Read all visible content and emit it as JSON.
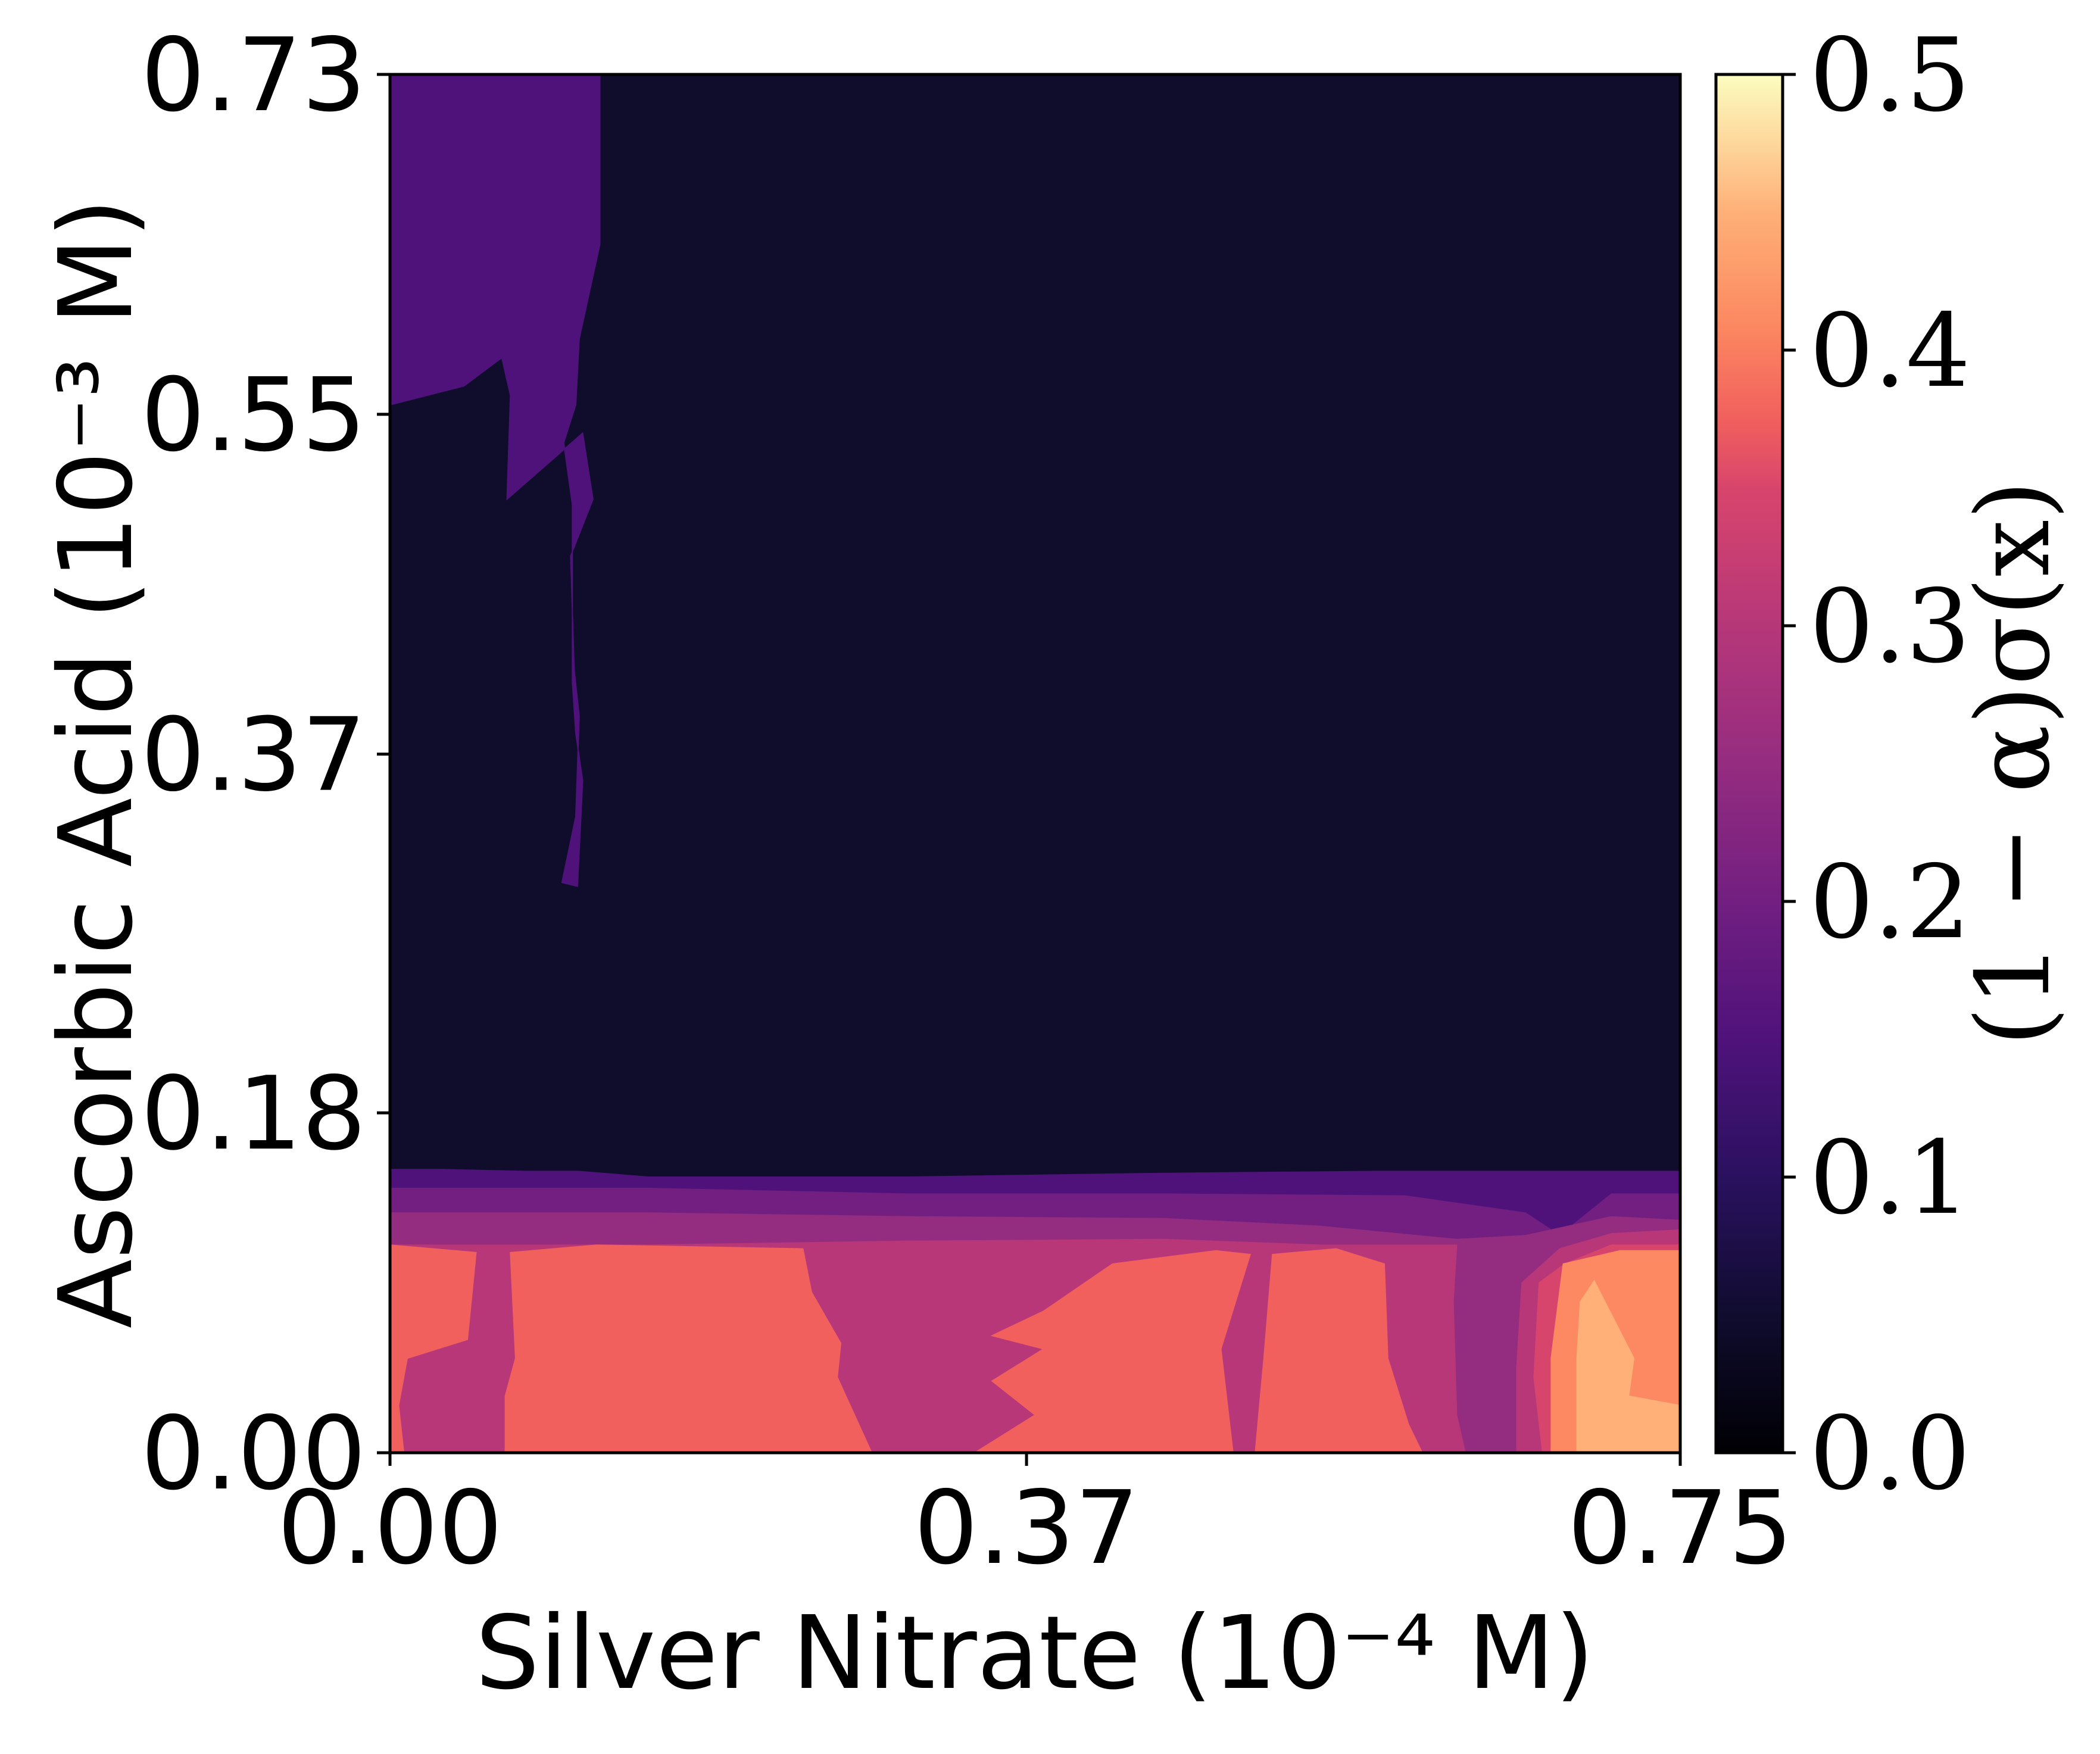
{
  "chart_data": {
    "type": "heatmap",
    "subtype": "filled-contour",
    "title": "",
    "xlabel": "Silver Nitrate (10⁻⁴ M)",
    "ylabel": "Ascorbic Acid (10⁻³ M)",
    "xlim": [
      0.0,
      0.75
    ],
    "ylim": [
      0.0,
      0.73
    ],
    "xticks": [
      "0.00",
      "0.37",
      "0.75"
    ],
    "yticks": [
      "0.00",
      "0.18",
      "0.37",
      "0.55",
      "0.73"
    ],
    "grid": false,
    "colorbar": {
      "label": "(1 − α)σ(x)",
      "range": [
        0.0,
        0.5
      ],
      "ticks": [
        "0.0",
        "0.1",
        "0.2",
        "0.3",
        "0.4",
        "0.5"
      ],
      "colormap": "magma",
      "position": "right"
    },
    "levels": [
      0.0,
      0.05,
      0.1,
      0.15,
      0.2,
      0.25,
      0.3,
      0.35,
      0.4,
      0.45,
      0.5
    ],
    "band_colors": [
      "#0f0d2b",
      "#2d1160",
      "#4f127b",
      "#721f81",
      "#942c80",
      "#b73779",
      "#d8456c",
      "#f1605d",
      "#fc8961",
      "#feb078",
      "#fcfdbf"
    ],
    "regions": [
      {
        "level": 0.0,
        "polygon": [
          [
            0.0,
            0.0
          ],
          [
            0.75,
            0.0
          ],
          [
            0.75,
            0.73
          ],
          [
            0.0,
            0.73
          ]
        ]
      },
      {
        "level": 0.1,
        "polygon": [
          [
            0.0,
            0.0
          ],
          [
            0.75,
            0.0
          ],
          [
            0.75,
            0.149
          ],
          [
            0.57,
            0.149
          ],
          [
            0.45,
            0.148
          ],
          [
            0.3,
            0.146
          ],
          [
            0.15,
            0.146
          ],
          [
            0.11,
            0.149
          ],
          [
            0.08,
            0.149
          ],
          [
            0.03,
            0.15
          ],
          [
            0.0,
            0.15
          ]
        ]
      },
      {
        "level": 0.1,
        "polygon": [
          [
            0.0,
            0.73
          ],
          [
            0.122,
            0.73
          ],
          [
            0.122,
            0.64
          ],
          [
            0.11,
            0.59
          ],
          [
            0.108,
            0.555
          ],
          [
            0.101,
            0.535
          ],
          [
            0.106,
            0.502
          ],
          [
            0.106,
            0.462
          ],
          [
            0.106,
            0.408
          ],
          [
            0.108,
            0.381
          ],
          [
            0.112,
            0.356
          ],
          [
            0.109,
            0.3
          ],
          [
            0.1,
            0.302
          ],
          [
            0.108,
            0.337
          ],
          [
            0.11,
            0.39
          ],
          [
            0.107,
            0.415
          ],
          [
            0.105,
            0.475
          ],
          [
            0.118,
            0.505
          ],
          [
            0.112,
            0.54
          ],
          [
            0.068,
            0.505
          ],
          [
            0.07,
            0.56
          ],
          [
            0.065,
            0.58
          ],
          [
            0.043,
            0.565
          ],
          [
            0.0,
            0.555
          ]
        ]
      },
      {
        "level": 0.15,
        "polygon": [
          [
            0.0,
            0.0
          ],
          [
            0.75,
            0.0
          ],
          [
            0.75,
            0.137
          ],
          [
            0.71,
            0.137
          ],
          [
            0.68,
            0.115
          ],
          [
            0.66,
            0.127
          ],
          [
            0.59,
            0.136
          ],
          [
            0.45,
            0.137
          ],
          [
            0.3,
            0.137
          ],
          [
            0.15,
            0.14
          ],
          [
            0.05,
            0.14
          ],
          [
            0.0,
            0.14
          ]
        ]
      },
      {
        "level": 0.2,
        "polygon": [
          [
            0.0,
            0.0
          ],
          [
            0.75,
            0.0
          ],
          [
            0.75,
            0.123
          ],
          [
            0.71,
            0.125
          ],
          [
            0.66,
            0.115
          ],
          [
            0.62,
            0.113
          ],
          [
            0.54,
            0.12
          ],
          [
            0.45,
            0.124
          ],
          [
            0.3,
            0.125
          ],
          [
            0.15,
            0.127
          ],
          [
            0.05,
            0.127
          ],
          [
            0.0,
            0.127
          ]
        ]
      },
      {
        "level": 0.25,
        "polygon": [
          [
            0.0,
            0.0
          ],
          [
            0.625,
            0.0
          ],
          [
            0.62,
            0.02
          ],
          [
            0.618,
            0.08
          ],
          [
            0.62,
            0.11
          ],
          [
            0.54,
            0.11
          ],
          [
            0.45,
            0.113
          ],
          [
            0.3,
            0.112
          ],
          [
            0.15,
            0.11
          ],
          [
            0.0,
            0.11
          ]
        ]
      },
      {
        "level": 0.25,
        "polygon": [
          [
            0.655,
            0.0
          ],
          [
            0.75,
            0.0
          ],
          [
            0.75,
            0.118
          ],
          [
            0.71,
            0.116
          ],
          [
            0.68,
            0.108
          ],
          [
            0.658,
            0.09
          ],
          [
            0.655,
            0.045
          ]
        ]
      },
      {
        "level": 0.3,
        "polygon": [
          [
            0.67,
            0.0
          ],
          [
            0.75,
            0.0
          ],
          [
            0.75,
            0.11
          ],
          [
            0.71,
            0.11
          ],
          [
            0.683,
            0.1
          ],
          [
            0.668,
            0.09
          ],
          [
            0.665,
            0.04
          ]
        ]
      },
      {
        "level": 0.35,
        "polygon": [
          [
            0.0,
            0.0
          ],
          [
            0.0,
            0.11
          ],
          [
            0.05,
            0.106
          ],
          [
            0.045,
            0.06
          ],
          [
            0.01,
            0.05
          ],
          [
            0.005,
            0.025
          ],
          [
            0.008,
            0.0
          ]
        ]
      },
      {
        "level": 0.35,
        "polygon": [
          [
            0.067,
            0.0
          ],
          [
            0.067,
            0.03
          ],
          [
            0.073,
            0.05
          ],
          [
            0.07,
            0.106
          ],
          [
            0.12,
            0.11
          ],
          [
            0.24,
            0.108
          ],
          [
            0.245,
            0.085
          ],
          [
            0.262,
            0.058
          ],
          [
            0.26,
            0.04
          ],
          [
            0.28,
            0.0
          ]
        ]
      },
      {
        "level": 0.35,
        "polygon": [
          [
            0.285,
            0.0
          ],
          [
            0.34,
            0.0
          ],
          [
            0.375,
            0.02
          ],
          [
            0.35,
            0.038
          ],
          [
            0.38,
            0.055
          ],
          [
            0.35,
            0.062
          ],
          [
            0.38,
            0.075
          ],
          [
            0.42,
            0.1
          ],
          [
            0.48,
            0.107
          ],
          [
            0.5,
            0.105
          ],
          [
            0.483,
            0.055
          ],
          [
            0.49,
            0.0
          ]
        ]
      },
      {
        "level": 0.35,
        "polygon": [
          [
            0.503,
            0.0
          ],
          [
            0.6,
            0.0
          ],
          [
            0.592,
            0.015
          ],
          [
            0.58,
            0.05
          ],
          [
            0.578,
            0.1
          ],
          [
            0.55,
            0.108
          ],
          [
            0.513,
            0.105
          ],
          [
            0.508,
            0.05
          ]
        ]
      },
      {
        "level": 0.4,
        "polygon": [
          [
            0.675,
            0.0
          ],
          [
            0.75,
            0.0
          ],
          [
            0.75,
            0.107
          ],
          [
            0.715,
            0.107
          ],
          [
            0.682,
            0.1
          ],
          [
            0.675,
            0.05
          ]
        ]
      },
      {
        "level": 0.45,
        "polygon": [
          [
            0.69,
            0.0
          ],
          [
            0.75,
            0.0
          ],
          [
            0.75,
            0.025
          ],
          [
            0.72,
            0.03
          ],
          [
            0.723,
            0.05
          ],
          [
            0.7,
            0.091
          ],
          [
            0.692,
            0.08
          ],
          [
            0.69,
            0.05
          ]
        ]
      }
    ]
  }
}
